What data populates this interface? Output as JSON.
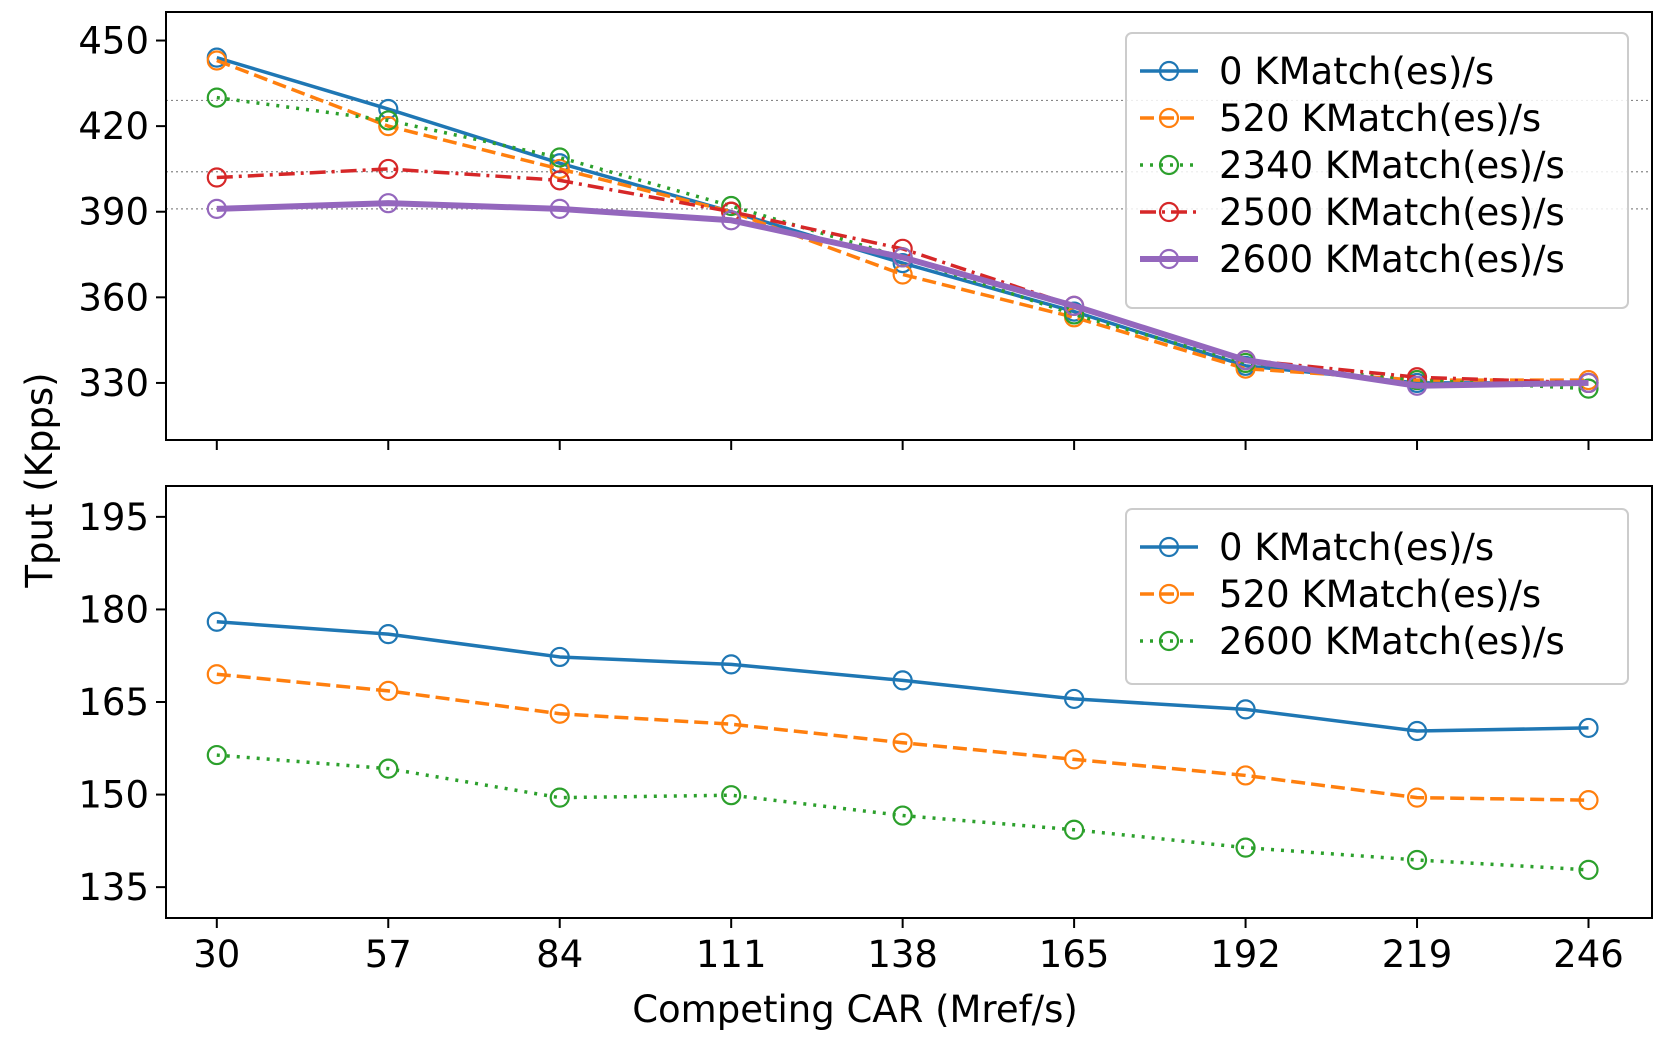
{
  "figure": {
    "ylabel": "Tput (Kpps)",
    "xlabel": "Competing CAR (Mref/s)"
  },
  "chart_data": [
    {
      "type": "line",
      "panel": "top",
      "categories": [
        "30",
        "57",
        "84",
        "111",
        "138",
        "165",
        "192",
        "219",
        "246"
      ],
      "x": [
        30,
        57,
        84,
        111,
        138,
        165,
        192,
        219,
        246
      ],
      "xlim": [
        22,
        256
      ],
      "ylim": [
        310,
        460
      ],
      "yticks": [
        330,
        360,
        390,
        420,
        450
      ],
      "hlines": [
        429,
        404,
        391
      ],
      "legend_position": "top-right",
      "series": [
        {
          "name": "0 KMatch(es)/s",
          "color": "#1f77b4",
          "dash": "solid",
          "width": 3.5,
          "values": [
            444,
            426,
            407,
            390,
            372,
            355,
            336,
            330,
            330
          ]
        },
        {
          "name": "520 KMatch(es)/s",
          "color": "#ff7f0e",
          "dash": "dashed",
          "width": 3.5,
          "values": [
            443,
            420,
            405,
            390,
            368,
            353,
            335,
            331,
            331
          ]
        },
        {
          "name": "2340 KMatch(es)/s",
          "color": "#2ca02c",
          "dash": "dotted",
          "width": 3.5,
          "values": [
            430,
            422,
            409,
            392,
            374,
            354,
            337,
            331,
            328
          ]
        },
        {
          "name": "2500 KMatch(es)/s",
          "color": "#d62728",
          "dash": "dashdot",
          "width": 3.5,
          "values": [
            402,
            405,
            401,
            390,
            377,
            357,
            338,
            332,
            330
          ]
        },
        {
          "name": "2600 KMatch(es)/s",
          "color": "#9467bd",
          "dash": "solid",
          "width": 6,
          "values": [
            391,
            393,
            391,
            387,
            374,
            357,
            338,
            329,
            330
          ]
        }
      ]
    },
    {
      "type": "line",
      "panel": "bottom",
      "categories": [
        "30",
        "57",
        "84",
        "111",
        "138",
        "165",
        "192",
        "219",
        "246"
      ],
      "x": [
        30,
        57,
        84,
        111,
        138,
        165,
        192,
        219,
        246
      ],
      "xlim": [
        22,
        256
      ],
      "ylim": [
        130,
        200
      ],
      "yticks": [
        135,
        150,
        165,
        180,
        195
      ],
      "legend_position": "top-right",
      "series": [
        {
          "name": "0 KMatch(es)/s",
          "color": "#1f77b4",
          "dash": "solid",
          "width": 3.5,
          "values": [
            178,
            176,
            172.3,
            171.1,
            168.5,
            165.5,
            163.8,
            160.3,
            160.8
          ]
        },
        {
          "name": "520 KMatch(es)/s",
          "color": "#ff7f0e",
          "dash": "dashed",
          "width": 3.5,
          "values": [
            169.5,
            166.8,
            163.1,
            161.4,
            158.4,
            155.7,
            153.1,
            149.5,
            149.1
          ]
        },
        {
          "name": "2600 KMatch(es)/s",
          "color": "#2ca02c",
          "dash": "dotted",
          "width": 3.5,
          "values": [
            156.4,
            154.2,
            149.5,
            149.9,
            146.6,
            144.3,
            141.4,
            139.4,
            137.8
          ]
        }
      ]
    }
  ]
}
